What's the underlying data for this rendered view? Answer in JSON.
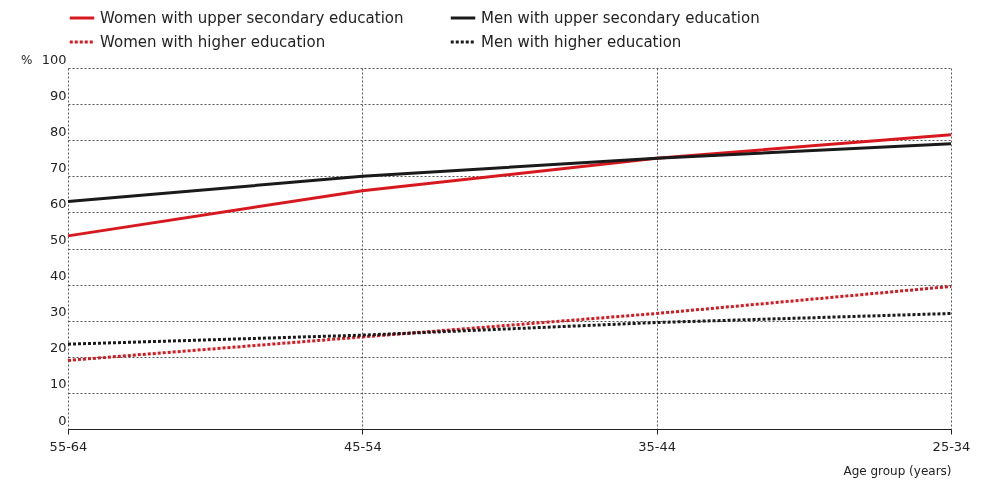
{
  "chart_data": {
    "type": "line",
    "xlabel": "Age group (years)",
    "ylabel": "%",
    "categories": [
      "55-64",
      "45-54",
      "35-44",
      "25-34"
    ],
    "series": [
      {
        "name": "Women with upper secondary education",
        "color": "#d7191f",
        "line_style": "solid",
        "values": [
          53.5,
          66,
          75,
          81.5
        ]
      },
      {
        "name": "Men with upper secondary education",
        "color": "#1a1a1a",
        "line_style": "solid",
        "values": [
          63,
          70,
          75,
          79
        ]
      },
      {
        "name": "Women with higher education",
        "color": "#d7191f",
        "line_style": "dotted",
        "values": [
          19,
          25.5,
          32,
          39.5
        ]
      },
      {
        "name": "Men with higher education",
        "color": "#1a1a1a",
        "line_style": "dotted",
        "values": [
          23.5,
          26,
          29.5,
          32
        ]
      }
    ],
    "ylim": [
      0,
      100
    ],
    "yticks": [
      0,
      10,
      20,
      30,
      40,
      50,
      60,
      70,
      80,
      90,
      100
    ],
    "grid": true,
    "legend": "top"
  }
}
